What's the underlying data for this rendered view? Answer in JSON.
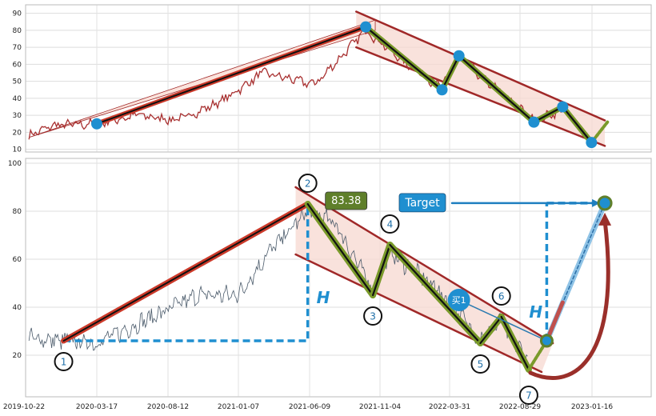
{
  "chart_data": {
    "type": "line",
    "x_ticks": [
      "2019-10-22",
      "2020-03-17",
      "2020-08-12",
      "2021-01-07",
      "2021-06-09",
      "2021-11-04",
      "2022-03-31",
      "2022-08-29",
      "2023-01-16"
    ],
    "top_panel": {
      "y_ticks": [
        "10",
        "20",
        "30",
        "40",
        "50",
        "60",
        "70",
        "80",
        "90"
      ],
      "ylim": [
        7,
        95
      ],
      "pivots": [
        {
          "x": "2020-03-17",
          "y": 25
        },
        {
          "x": "2021-10-05",
          "y": 82
        },
        {
          "x": "2022-03-15",
          "y": 45
        },
        {
          "x": "2022-04-20",
          "y": 65
        },
        {
          "x": "2022-09-25",
          "y": 26
        },
        {
          "x": "2022-11-20",
          "y": 35
        },
        {
          "x": "2023-01-15",
          "y": 14
        }
      ]
    },
    "bottom_panel": {
      "y_ticks": [
        "20",
        "40",
        "60",
        "80",
        "100"
      ],
      "ylim": [
        0,
        102
      ],
      "wave_points": [
        {
          "label": "1",
          "x": "2020-01-10",
          "y": 26
        },
        {
          "label": "2",
          "x": "2021-06-05",
          "y": 83
        },
        {
          "label": "3",
          "x": "2021-10-20",
          "y": 45
        },
        {
          "label": "4",
          "x": "2021-11-25",
          "y": 66
        },
        {
          "label": "5",
          "x": "2022-06-05",
          "y": 25
        },
        {
          "label": "6",
          "x": "2022-07-20",
          "y": 36
        },
        {
          "label": "7",
          "x": "2022-09-15",
          "y": 14
        }
      ],
      "peak_value_label": "83.38",
      "buy_label": "买1",
      "buy_point": {
        "x": "2022-10-20",
        "y": 26
      },
      "target_label": "Target",
      "target_value": 83.38,
      "target_x": "2023-02-10",
      "height_label": "H"
    },
    "colors": {
      "price": "#4a5a6a",
      "price_top": "#a83030",
      "trend_red": "#cc3a2a",
      "channel_red": "#a02828",
      "channel_fill": "#f7d8d0",
      "wave_green": "#7a9a2a",
      "wave_black": "#111111",
      "pivot_blue": "#1f8fd0",
      "dashed_blue": "#1f8fd0",
      "arrow_red": "#9a2f2a",
      "badge_green": "#5f7f2a"
    }
  }
}
